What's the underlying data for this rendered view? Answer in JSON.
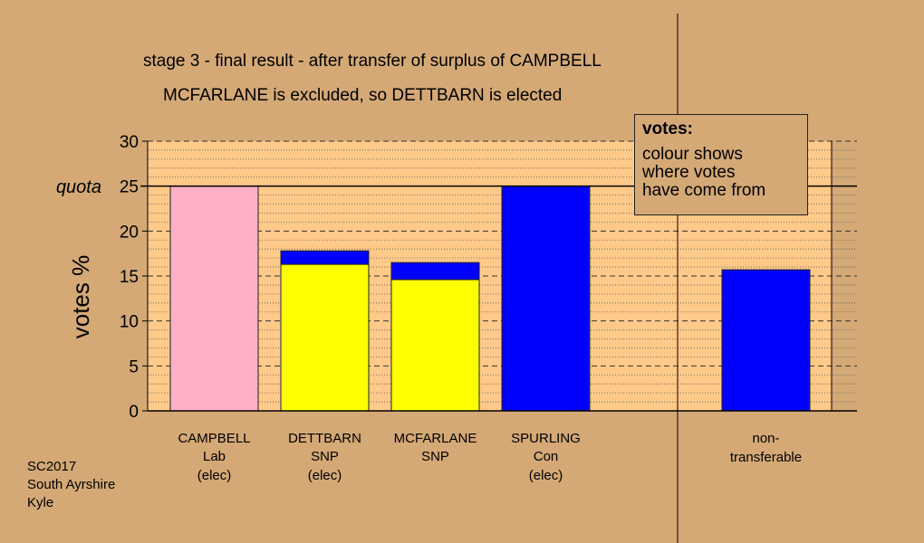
{
  "chart_data": {
    "type": "bar",
    "title": "stage 3 - final result - after transfer of surplus of CAMPBELL",
    "subtitle": "MCFARLANE is excluded, so DETTBARN is elected",
    "ylabel": "votes %",
    "ylim": [
      0,
      30
    ],
    "yticks": [
      "0",
      "5",
      "10",
      "15",
      "20",
      "25",
      "30"
    ],
    "grid": true,
    "quota": {
      "label": "quota",
      "value": 25
    },
    "candidates": [
      {
        "name": "CAMPBELL",
        "party": "Lab",
        "status": "(elec)",
        "segments": [
          {
            "value": 25,
            "color": "#ffb0c4"
          }
        ]
      },
      {
        "name": "DETTBARN",
        "party": "SNP",
        "status": "(elec)",
        "segments": [
          {
            "value": 16.3,
            "color": "#ffff00"
          },
          {
            "value": 1.5,
            "color": "#0000ff"
          }
        ]
      },
      {
        "name": "MCFARLANE",
        "party": "SNP",
        "status": "",
        "segments": [
          {
            "value": 14.6,
            "color": "#ffff00"
          },
          {
            "value": 1.9,
            "color": "#0000ff"
          }
        ]
      },
      {
        "name": "SPURLING",
        "party": "Con",
        "status": "(elec)",
        "segments": [
          {
            "value": 25,
            "color": "#0000ff"
          }
        ]
      }
    ],
    "nontransferable": {
      "label1": "non-",
      "label2": "transferable",
      "value": 15.7,
      "color": "#0000ff"
    }
  },
  "legend": {
    "title": "votes:",
    "line1": "colour shows",
    "line2": "where votes",
    "line3": "have come from"
  },
  "footer": {
    "line1": "SC2017",
    "line2": "South Ayrshire",
    "line3": "Kyle"
  },
  "colors": {
    "background": "#d4a976",
    "plot_area": "#ffc98a"
  }
}
